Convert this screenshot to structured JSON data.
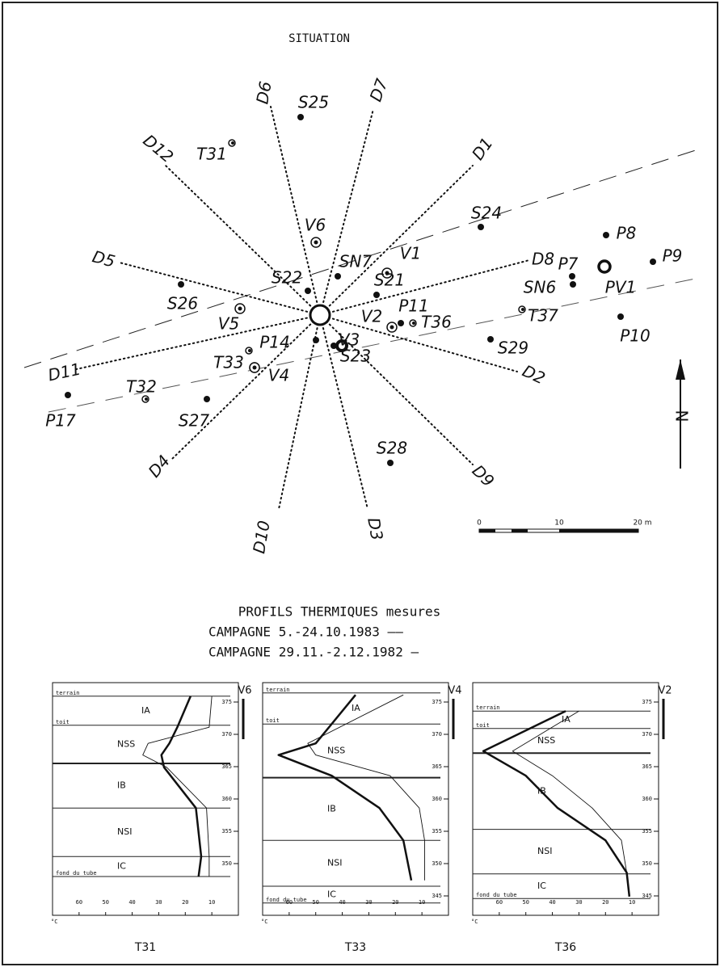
{
  "situation": {
    "title": "SITUATION",
    "rays": [
      "D6",
      "D7",
      "D1",
      "D12",
      "D5",
      "D8",
      "D11",
      "D2",
      "D4",
      "D9",
      "D10",
      "D3"
    ],
    "points": [
      "S25",
      "T31",
      "S24",
      "V6",
      "V1",
      "SN7",
      "S22",
      "S21",
      "P8",
      "P9",
      "P7",
      "SN6",
      "PV1",
      "S26",
      "V5",
      "P11",
      "V2",
      "T36",
      "T37",
      "P10",
      "S29",
      "P14",
      "T33",
      "V4",
      "V3",
      "S23",
      "T32",
      "S27",
      "P17",
      "S28"
    ],
    "north": "N",
    "scale_labels": [
      "0",
      "10",
      "20 m"
    ]
  },
  "profiles": {
    "title": "PROFILS THERMIQUES mesures",
    "legend": [
      "CAMPAGNE 5.-24.10.1983 ——",
      "CAMPAGNE 29.11.-2.12.1982 —"
    ],
    "temperature_ticks": [
      60,
      50,
      40,
      30,
      20,
      10
    ],
    "temperature_unit": "°C",
    "temperature_lim": [
      70,
      0
    ],
    "elevation_lim": [
      378,
      342
    ],
    "panels": [
      {
        "name": "T31",
        "borehole": "V6",
        "elevation_ticks": [
          375,
          370,
          365,
          360,
          355,
          350
        ],
        "boundaries": [
          375.9,
          371.4,
          365.5,
          358.6,
          351.1,
          348
        ],
        "boundary_labels": [
          "terrain",
          "toit",
          null,
          null,
          null,
          "fond du tube"
        ],
        "zones": [
          "IA",
          "NSS",
          "IB",
          "NSI",
          "IC"
        ],
        "elevations": [
          375.9,
          371.1,
          368.6,
          366.8,
          364.9,
          358.6,
          351.1,
          348
        ],
        "temp_1983": [
          18,
          23,
          26,
          29,
          28,
          16,
          14,
          15
        ],
        "temp_1982": [
          10,
          11,
          34,
          36,
          27,
          12,
          11,
          11
        ]
      },
      {
        "name": "T33",
        "borehole": "V4",
        "elevation_ticks": [
          375,
          370,
          365,
          360,
          355,
          350,
          345
        ],
        "boundaries": [
          376.4,
          371.6,
          363.3,
          353.6,
          346.5,
          343.9
        ],
        "boundary_labels": [
          "terrain",
          "toit",
          null,
          null,
          null,
          "fond du tube"
        ],
        "zones": [
          "IA",
          "NSS",
          "IB",
          "NSI",
          "IC"
        ],
        "elevations": [
          376.1,
          368.6,
          366.8,
          363.6,
          358.6,
          353.6,
          347.4
        ],
        "temp_1983": [
          35,
          50,
          64,
          44,
          26,
          17,
          14
        ],
        "temp_1982": [
          17,
          53,
          50,
          22,
          11,
          9,
          9
        ]
      },
      {
        "name": "T36",
        "borehole": "V2",
        "elevation_ticks": [
          375,
          370,
          365,
          360,
          355,
          350,
          345
        ],
        "boundaries": [
          373.6,
          370.9,
          367.1,
          355.3,
          348.4,
          344.6
        ],
        "boundary_labels": [
          "terrain",
          "toit",
          null,
          null,
          null,
          "fond du tube"
        ],
        "zones": [
          "IA",
          "NSS",
          "IB",
          "NSI",
          "IC"
        ],
        "elevations": [
          373.6,
          367.4,
          363.6,
          358.6,
          353.6,
          348.6,
          344.9
        ],
        "temp_1983": [
          35,
          66,
          50,
          38,
          20,
          12,
          11
        ],
        "temp_1982": [
          30,
          55,
          40,
          25,
          14,
          12,
          11
        ]
      }
    ]
  }
}
